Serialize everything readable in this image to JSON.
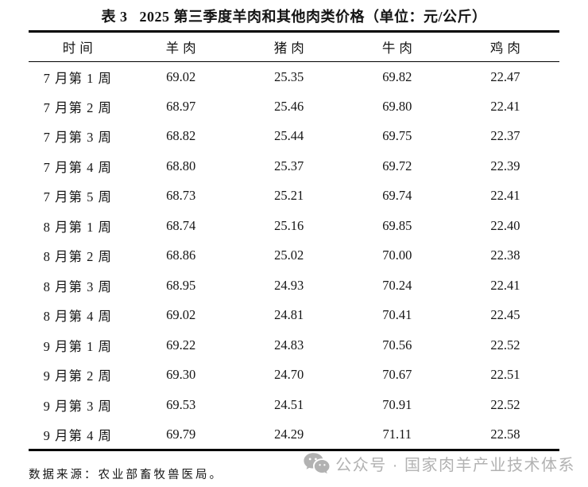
{
  "title": "表 3   2025 第三季度羊肉和其他肉类价格（单位：元/公斤）",
  "table": {
    "columns": [
      "时间",
      "羊肉",
      "猪肉",
      "牛肉",
      "鸡肉"
    ],
    "rows": [
      {
        "time": "7 月第 1 周",
        "values": [
          "69.02",
          "25.35",
          "69.82",
          "22.47"
        ]
      },
      {
        "time": "7 月第 2 周",
        "values": [
          "68.97",
          "25.46",
          "69.80",
          "22.41"
        ]
      },
      {
        "time": "7 月第 3 周",
        "values": [
          "68.82",
          "25.44",
          "69.75",
          "22.37"
        ]
      },
      {
        "time": "7 月第 4 周",
        "values": [
          "68.80",
          "25.37",
          "69.72",
          "22.39"
        ]
      },
      {
        "time": "7 月第 5 周",
        "values": [
          "68.73",
          "25.21",
          "69.74",
          "22.41"
        ]
      },
      {
        "time": "8 月第 1 周",
        "values": [
          "68.74",
          "25.16",
          "69.85",
          "22.40"
        ]
      },
      {
        "time": "8 月第 2 周",
        "values": [
          "68.86",
          "25.02",
          "70.00",
          "22.38"
        ]
      },
      {
        "time": "8 月第 3 周",
        "values": [
          "68.95",
          "24.93",
          "70.24",
          "22.41"
        ]
      },
      {
        "time": "8 月第 4 周",
        "values": [
          "69.02",
          "24.81",
          "70.41",
          "22.45"
        ]
      },
      {
        "time": "9 月第 1 周",
        "values": [
          "69.22",
          "24.83",
          "70.56",
          "22.52"
        ]
      },
      {
        "time": "9 月第 2 周",
        "values": [
          "69.30",
          "24.70",
          "70.67",
          "22.51"
        ]
      },
      {
        "time": "9 月第 3 周",
        "values": [
          "69.53",
          "24.51",
          "70.91",
          "22.52"
        ]
      },
      {
        "time": "9 月第 4 周",
        "values": [
          "69.79",
          "24.29",
          "71.11",
          "22.58"
        ]
      }
    ]
  },
  "footer": {
    "source": "数据来源：农业部畜牧兽医局。",
    "watermark": "公众号 · 国家肉羊产业技术体系"
  },
  "colors": {
    "text": "#151515",
    "border": "#000000",
    "watermark_gray": "#b2b2b2",
    "background": "#ffffff"
  },
  "icons": {
    "watermark_icon": "wechat-icon"
  },
  "chart_data": {
    "type": "table",
    "title": "表 3 2025 第三季度羊肉和其他肉类价格（单位：元/公斤）",
    "columns": [
      "时间",
      "羊肉",
      "猪肉",
      "牛肉",
      "鸡肉"
    ],
    "rows": [
      [
        "7 月第 1 周",
        69.02,
        25.35,
        69.82,
        22.47
      ],
      [
        "7 月第 2 周",
        68.97,
        25.46,
        69.8,
        22.41
      ],
      [
        "7 月第 3 周",
        68.82,
        25.44,
        69.75,
        22.37
      ],
      [
        "7 月第 4 周",
        68.8,
        25.37,
        69.72,
        22.39
      ],
      [
        "7 月第 5 周",
        68.73,
        25.21,
        69.74,
        22.41
      ],
      [
        "8 月第 1 周",
        68.74,
        25.16,
        69.85,
        22.4
      ],
      [
        "8 月第 2 周",
        68.86,
        25.02,
        70.0,
        22.38
      ],
      [
        "8 月第 3 周",
        68.95,
        24.93,
        70.24,
        22.41
      ],
      [
        "8 月第 4 周",
        69.02,
        24.81,
        70.41,
        22.45
      ],
      [
        "9 月第 1 周",
        69.22,
        24.83,
        70.56,
        22.52
      ],
      [
        "9 月第 2 周",
        69.3,
        24.7,
        70.67,
        22.51
      ],
      [
        "9 月第 3 周",
        69.53,
        24.51,
        70.91,
        22.52
      ],
      [
        "9 月第 4 周",
        69.79,
        24.29,
        71.11,
        22.58
      ]
    ]
  }
}
